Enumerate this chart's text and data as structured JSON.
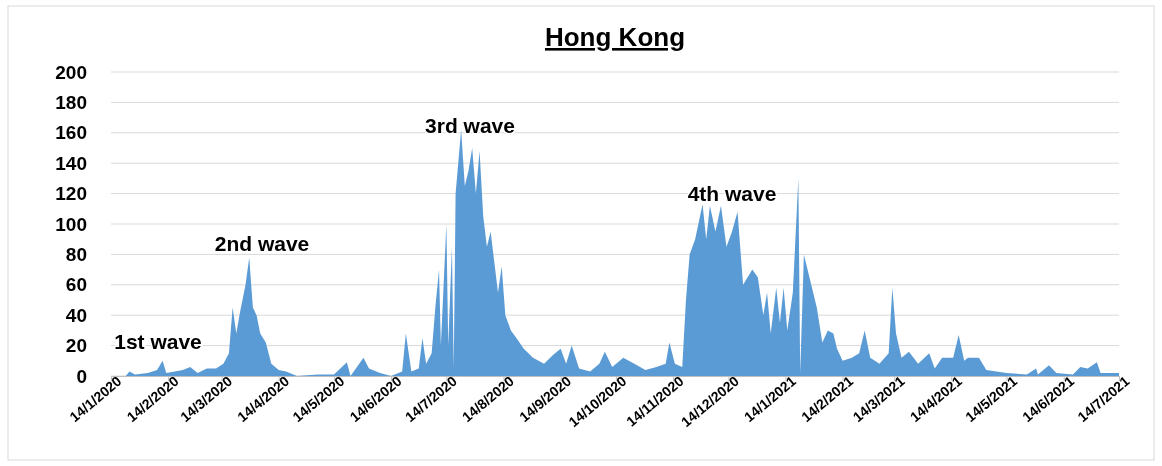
{
  "chart_data": {
    "type": "area",
    "title": "Hong Kong",
    "color": "#5b9bd5",
    "grid": "y",
    "xlim": [
      "2020-01-14",
      "2021-07-14"
    ],
    "xticks": [
      {
        "value": "2020-01-14",
        "label": "14/1/2020"
      },
      {
        "value": "2020-02-14",
        "label": "14/2/2020"
      },
      {
        "value": "2020-03-14",
        "label": "14/3/2020"
      },
      {
        "value": "2020-04-14",
        "label": "14/4/2020"
      },
      {
        "value": "2020-05-14",
        "label": "14/5/2020"
      },
      {
        "value": "2020-06-14",
        "label": "14/6/2020"
      },
      {
        "value": "2020-07-14",
        "label": "14/7/2020"
      },
      {
        "value": "2020-08-14",
        "label": "14/8/2020"
      },
      {
        "value": "2020-09-14",
        "label": "14/9/2020"
      },
      {
        "value": "2020-10-14",
        "label": "14/10/2020"
      },
      {
        "value": "2020-11-14",
        "label": "14/11/2020"
      },
      {
        "value": "2020-12-14",
        "label": "14/12/2020"
      },
      {
        "value": "2021-01-14",
        "label": "14/1/2021"
      },
      {
        "value": "2021-02-14",
        "label": "14/2/2021"
      },
      {
        "value": "2021-03-14",
        "label": "14/3/2021"
      },
      {
        "value": "2021-04-14",
        "label": "14/4/2021"
      },
      {
        "value": "2021-05-14",
        "label": "14/5/2021"
      },
      {
        "value": "2021-06-14",
        "label": "14/6/2021"
      },
      {
        "value": "2021-07-14",
        "label": "14/7/2021"
      }
    ],
    "ylim": [
      0,
      200
    ],
    "yticks": [
      0,
      20,
      40,
      60,
      80,
      100,
      120,
      140,
      160,
      180,
      200
    ],
    "x": [
      "2020-01-14",
      "2020-01-22",
      "2020-01-24",
      "2020-01-27",
      "2020-02-03",
      "2020-02-08",
      "2020-02-11",
      "2020-02-13",
      "2020-02-22",
      "2020-02-26",
      "2020-03-01",
      "2020-03-06",
      "2020-03-11",
      "2020-03-15",
      "2020-03-18",
      "2020-03-20",
      "2020-03-22",
      "2020-03-24",
      "2020-03-27",
      "2020-03-29",
      "2020-03-31",
      "2020-04-02",
      "2020-04-04",
      "2020-04-07",
      "2020-04-10",
      "2020-04-14",
      "2020-04-18",
      "2020-04-24",
      "2020-05-05",
      "2020-05-14",
      "2020-05-21",
      "2020-05-23",
      "2020-05-30",
      "2020-06-02",
      "2020-06-08",
      "2020-06-14",
      "2020-06-20",
      "2020-06-22",
      "2020-06-25",
      "2020-06-29",
      "2020-07-01",
      "2020-07-03",
      "2020-07-06",
      "2020-07-08",
      "2020-07-10",
      "2020-07-11",
      "2020-07-14",
      "2020-07-15",
      "2020-07-17",
      "2020-07-18",
      "2020-07-19",
      "2020-07-22",
      "2020-07-24",
      "2020-07-26",
      "2020-07-28",
      "2020-07-30",
      "2020-08-01",
      "2020-08-03",
      "2020-08-05",
      "2020-08-07",
      "2020-08-09",
      "2020-08-11",
      "2020-08-13",
      "2020-08-15",
      "2020-08-18",
      "2020-08-21",
      "2020-08-25",
      "2020-08-30",
      "2020-09-05",
      "2020-09-10",
      "2020-09-14",
      "2020-09-17",
      "2020-09-20",
      "2020-09-24",
      "2020-09-30",
      "2020-10-05",
      "2020-10-08",
      "2020-10-12",
      "2020-10-18",
      "2020-10-24",
      "2020-10-30",
      "2020-11-05",
      "2020-11-10",
      "2020-11-12",
      "2020-11-15",
      "2020-11-19",
      "2020-11-21",
      "2020-11-23",
      "2020-11-26",
      "2020-11-30",
      "2020-12-02",
      "2020-12-04",
      "2020-12-07",
      "2020-12-10",
      "2020-12-13",
      "2020-12-16",
      "2020-12-19",
      "2020-12-22",
      "2020-12-27",
      "2020-12-30",
      "2021-01-02",
      "2021-01-04",
      "2021-01-06",
      "2021-01-09",
      "2021-01-11",
      "2021-01-13",
      "2021-01-15",
      "2021-01-18",
      "2021-01-21",
      "2021-01-22",
      "2021-01-24",
      "2021-01-28",
      "2021-01-31",
      "2021-02-03",
      "2021-02-06",
      "2021-02-09",
      "2021-02-11",
      "2021-02-14",
      "2021-02-19",
      "2021-02-23",
      "2021-02-26",
      "2021-03-01",
      "2021-03-06",
      "2021-03-11",
      "2021-03-13",
      "2021-03-15",
      "2021-03-18",
      "2021-03-22",
      "2021-03-27",
      "2021-04-02",
      "2021-04-05",
      "2021-04-09",
      "2021-04-15",
      "2021-04-18",
      "2021-04-21",
      "2021-04-23",
      "2021-04-29",
      "2021-05-03",
      "2021-05-14",
      "2021-05-25",
      "2021-05-30",
      "2021-05-31",
      "2021-06-06",
      "2021-06-10",
      "2021-06-19",
      "2021-06-23",
      "2021-06-27",
      "2021-07-02",
      "2021-07-04",
      "2021-07-14"
    ],
    "values": [
      0,
      0,
      3,
      1,
      2,
      4,
      10,
      2,
      4,
      6,
      2,
      5,
      5,
      8,
      15,
      45,
      28,
      42,
      60,
      78,
      45,
      40,
      28,
      22,
      8,
      4,
      3,
      0,
      1,
      1,
      9,
      0,
      12,
      5,
      2,
      0,
      3,
      28,
      3,
      5,
      25,
      8,
      15,
      45,
      70,
      20,
      100,
      20,
      85,
      5,
      120,
      162,
      125,
      135,
      150,
      120,
      148,
      105,
      85,
      95,
      75,
      55,
      72,
      40,
      30,
      25,
      18,
      12,
      8,
      14,
      18,
      8,
      20,
      5,
      3,
      8,
      16,
      6,
      12,
      8,
      4,
      6,
      8,
      22,
      8,
      6,
      50,
      80,
      90,
      113,
      90,
      112,
      95,
      112,
      85,
      95,
      108,
      60,
      70,
      65,
      40,
      55,
      28,
      58,
      35,
      58,
      30,
      55,
      130,
      2,
      80,
      60,
      45,
      22,
      30,
      28,
      18,
      10,
      12,
      15,
      30,
      12,
      8,
      15,
      58,
      28,
      12,
      16,
      8,
      15,
      5,
      12,
      12,
      27,
      10,
      12,
      12,
      4,
      2,
      1,
      5,
      1,
      7,
      2,
      1,
      6,
      5,
      9,
      2,
      2
    ],
    "annotations": [
      "1st wave",
      "2nd wave",
      "3rd wave",
      "4th wave"
    ]
  }
}
